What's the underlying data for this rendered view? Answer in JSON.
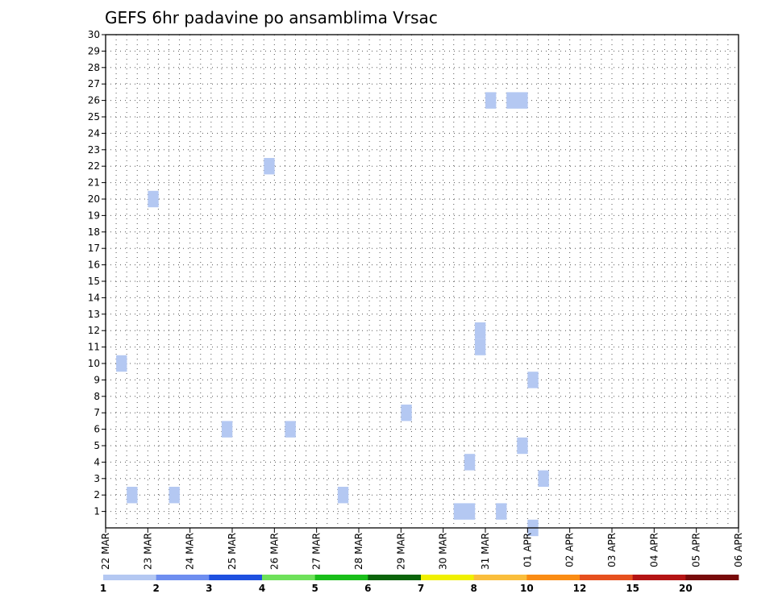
{
  "chart_data": {
    "type": "heatmap",
    "title": "GEFS 6hr padavine po ansamblima Vrsac",
    "x_tick_labels": [
      "22 MAR",
      "23 MAR",
      "24 MAR",
      "25 MAR",
      "26 MAR",
      "27 MAR",
      "28 MAR",
      "29 MAR",
      "30 MAR",
      "31 MAR",
      "01 APR",
      "02 APR",
      "03 APR",
      "04 APR",
      "05 APR",
      "06 APR"
    ],
    "steps_per_day": 4,
    "y_range": [
      0,
      30
    ],
    "y_tick_labels": [
      "1",
      "2",
      "3",
      "4",
      "5",
      "6",
      "7",
      "8",
      "9",
      "10",
      "11",
      "12",
      "13",
      "14",
      "15",
      "16",
      "17",
      "18",
      "19",
      "20",
      "21",
      "22",
      "23",
      "24",
      "25",
      "26",
      "27",
      "28",
      "29",
      "30"
    ],
    "grid": true,
    "colorbar": {
      "labels": [
        "1",
        "2",
        "3",
        "4",
        "5",
        "6",
        "7",
        "8",
        "10",
        "12",
        "15",
        "20"
      ],
      "colors": [
        "#b4c8f2",
        "#6e8ef0",
        "#1e50e0",
        "#6ee15a",
        "#19be19",
        "#0a640a",
        "#f0f000",
        "#fabe3c",
        "#fa8c14",
        "#e6501e",
        "#b41414",
        "#780a0a"
      ]
    },
    "cells": [
      {
        "t": 33,
        "m": 1,
        "c": 1
      },
      {
        "t": 34,
        "m": 1,
        "c": 1
      },
      {
        "t": 37,
        "m": 1,
        "c": 1
      },
      {
        "t": 2,
        "m": 2,
        "c": 1
      },
      {
        "t": 6,
        "m": 2,
        "c": 1
      },
      {
        "t": 22,
        "m": 2,
        "c": 1
      },
      {
        "t": 41,
        "m": 3,
        "c": 1
      },
      {
        "t": 34,
        "m": 4,
        "c": 1
      },
      {
        "t": 11,
        "m": 6,
        "c": 1
      },
      {
        "t": 28,
        "m": 7,
        "c": 1
      },
      {
        "t": 17,
        "m": 6,
        "c": 1
      },
      {
        "t": 1,
        "m": 10,
        "c": 1
      },
      {
        "t": 4,
        "m": 20,
        "c": 1
      },
      {
        "t": 15,
        "m": 22,
        "c": 1
      },
      {
        "t": 35,
        "m": 11,
        "c": 1
      },
      {
        "t": 40,
        "m": 0,
        "c": 1
      },
      {
        "t": 39,
        "m": 5,
        "c": 1
      },
      {
        "t": 40,
        "m": 9,
        "c": 1
      },
      {
        "t": 35,
        "m": 12,
        "c": 1
      },
      {
        "t": 39,
        "m": 26,
        "c": 1
      },
      {
        "t": 36,
        "m": 26,
        "c": 1
      },
      {
        "t": 38,
        "m": 26,
        "c": 1
      }
    ]
  }
}
